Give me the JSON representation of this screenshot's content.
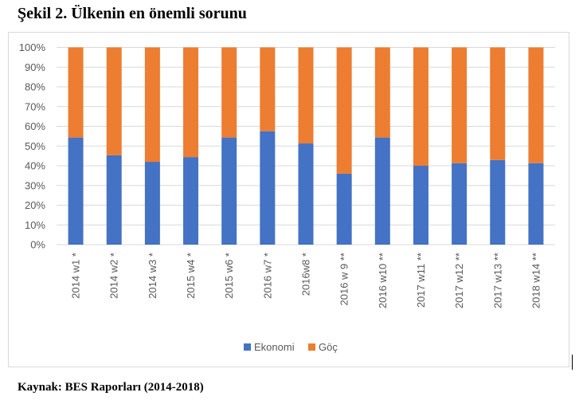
{
  "figure": {
    "title": "Şekil 2. Ülkenin en önemli sorunu",
    "source": "Kaynak: BES Raporları (2014-2018)"
  },
  "colors": {
    "ekonomi": "#4472c4",
    "goc": "#ed7d31",
    "grid": "#d9d9d9",
    "text": "#595959"
  },
  "chart_data": {
    "type": "bar",
    "stacked": true,
    "percent_stacked": true,
    "title": "",
    "xlabel": "",
    "ylabel": "",
    "ylim": [
      0,
      100
    ],
    "yticks": [
      "0%",
      "10%",
      "20%",
      "30%",
      "40%",
      "50%",
      "60%",
      "70%",
      "80%",
      "90%",
      "100%"
    ],
    "grid": true,
    "legend_position": "bottom",
    "categories": [
      "2014 w1 *",
      "2014  w2 *",
      "2014 w3 *",
      "2015 w4 *",
      "2015 w6 *",
      "2016 w7 *",
      "2016w8 *",
      "2016 w 9 **",
      "2016 w10 **",
      "2017 w11 **",
      "2017 w12 **",
      "2017 w13 **",
      "2018 w14 **"
    ],
    "series": [
      {
        "name": "Ekonomi",
        "values": [
          54.3,
          45.3,
          42.0,
          44.4,
          54.3,
          57.5,
          51.3,
          36.0,
          54.3,
          40.0,
          41.3,
          42.9,
          41.3
        ]
      },
      {
        "name": "Göç",
        "values": [
          45.7,
          54.7,
          58.0,
          55.6,
          45.7,
          42.5,
          48.7,
          64.0,
          45.7,
          60.0,
          58.7,
          57.1,
          58.7
        ]
      }
    ]
  }
}
